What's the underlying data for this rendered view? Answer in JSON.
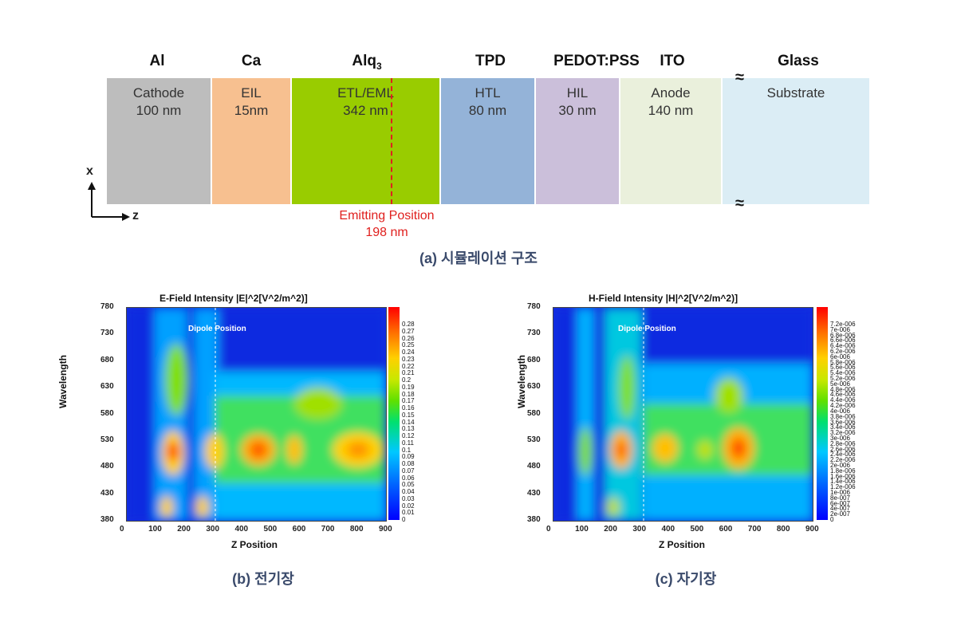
{
  "structure": {
    "materials": [
      "Al",
      "Ca",
      "Alq",
      "TPD",
      "PEDOT:PSS",
      "ITO",
      "Glass"
    ],
    "alq_subscript": "3",
    "layers": [
      {
        "name": "Cathode",
        "thickness": "100 nm",
        "color": "#bdbdbd"
      },
      {
        "name": "EIL",
        "thickness": "15nm",
        "color": "#f7c090"
      },
      {
        "name": "ETL/EML",
        "thickness": "342 nm",
        "color": "#99cc00"
      },
      {
        "name": "HTL",
        "thickness": "80 nm",
        "color": "#94b3d8"
      },
      {
        "name": "HIL",
        "thickness": "30 nm",
        "color": "#cbbfda"
      },
      {
        "name": "Anode",
        "thickness": "140 nm",
        "color": "#eaf0dc"
      },
      {
        "name": "Substrate",
        "thickness": "",
        "color": "#dbedf5"
      }
    ],
    "emitting_label": "Emitting  Position",
    "emitting_value": "198 nm",
    "axis_x": "x",
    "axis_z": "z",
    "caption": "(a) 시뮬레이션 구조"
  },
  "efield": {
    "title": "E-Field Intensity |E|^2[V^2/m^2)]",
    "ylabel": "Wavelength",
    "xlabel": "Z Position",
    "dipole_label": "Dipole Position",
    "y_ticks": [
      "780",
      "730",
      "680",
      "630",
      "580",
      "530",
      "480",
      "430",
      "380"
    ],
    "x_ticks": [
      "0",
      "100",
      "200",
      "300",
      "400",
      "500",
      "600",
      "700",
      "800",
      "900"
    ],
    "colorbar": [
      "0.28",
      "0.27",
      "0.26",
      "0.25",
      "0.24",
      "0.23",
      "0.22",
      "0.21",
      "0.2",
      "0.19",
      "0.18",
      "0.17",
      "0.16",
      "0.15",
      "0.14",
      "0.13",
      "0.12",
      "0.11",
      "0.1",
      "0.09",
      "0.08",
      "0.07",
      "0.06",
      "0.05",
      "0.04",
      "0.03",
      "0.02",
      "0.01",
      "0"
    ],
    "caption": "(b) 전기장"
  },
  "hfield": {
    "title": "H-Field Intensity |H|^2[V^2/m^2)]",
    "ylabel": "Wavelength",
    "xlabel": "Z Position",
    "dipole_label": "Dipole Position",
    "y_ticks": [
      "780",
      "730",
      "680",
      "630",
      "580",
      "530",
      "480",
      "430",
      "380"
    ],
    "x_ticks": [
      "0",
      "100",
      "200",
      "300",
      "400",
      "500",
      "600",
      "700",
      "800",
      "900"
    ],
    "colorbar": [
      "7.2e-006",
      "7e-006",
      "6.8e-006",
      "6.6e-006",
      "6.4e-006",
      "6.2e-006",
      "6e-006",
      "5.8e-006",
      "5.6e-006",
      "5.4e-006",
      "5.2e-006",
      "5e-006",
      "4.8e-006",
      "4.6e-006",
      "4.4e-006",
      "4.2e-006",
      "4e-006",
      "3.8e-006",
      "3.6e-006",
      "3.4e-006",
      "3.2e-006",
      "3e-006",
      "2.8e-006",
      "2.6e-006",
      "2.4e-006",
      "2.2e-006",
      "2e-006",
      "1.8e-006",
      "1.6e-006",
      "1.4e-006",
      "1.2e-006",
      "1e-006",
      "8e-007",
      "6e-007",
      "4e-007",
      "2e-007",
      "0"
    ],
    "caption": "(c) 자기장"
  }
}
